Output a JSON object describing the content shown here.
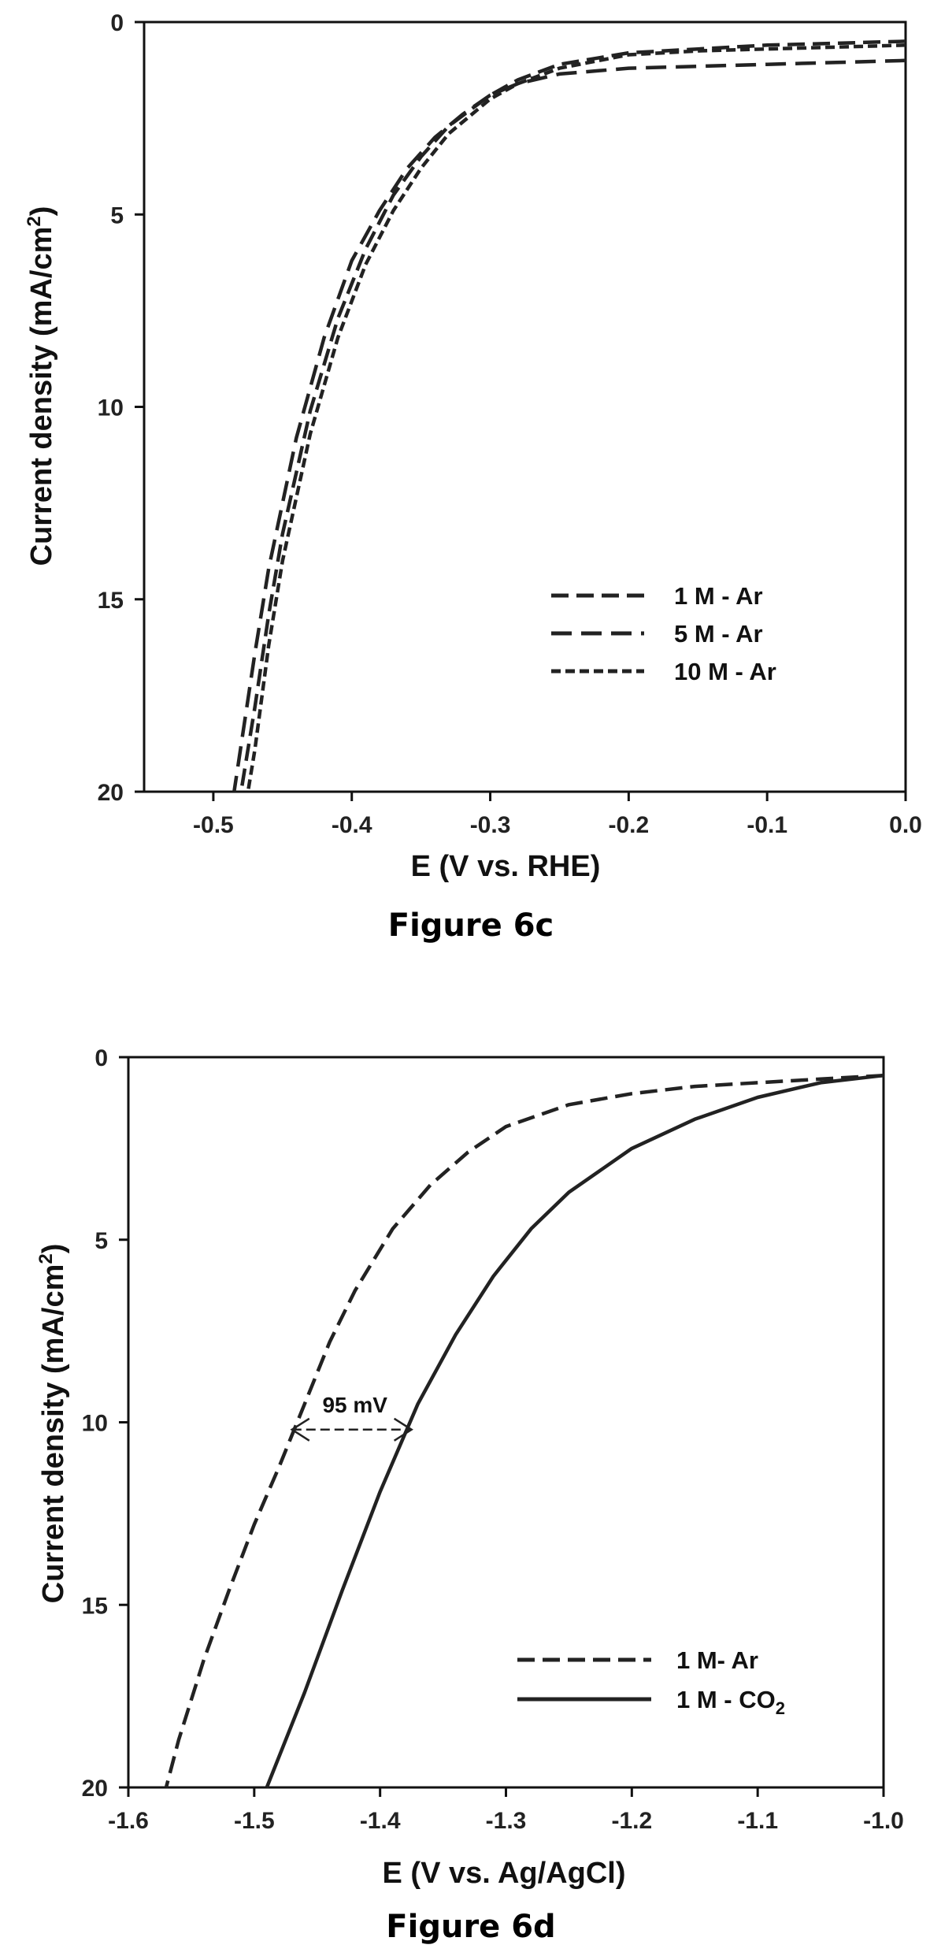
{
  "figures": [
    {
      "caption": "Figure 6c",
      "chart_data": {
        "type": "line",
        "title": "",
        "xlabel": "E (V vs. RHE)",
        "ylabel": "Current density (mA/cm",
        "ylabel_sup": "2",
        "ylabel_end": ")",
        "xlim": [
          -0.55,
          0.0
        ],
        "ylim": [
          0,
          20
        ],
        "y_inverted": true,
        "xticks": [
          -0.5,
          -0.4,
          -0.3,
          -0.2,
          -0.1,
          0.0
        ],
        "xtick_labels": [
          "-0.5",
          "-0.4",
          "-0.3",
          "-0.2",
          "-0.1",
          "0.0"
        ],
        "yticks": [
          0,
          5,
          10,
          15,
          20
        ],
        "ytick_labels": [
          "0",
          "5",
          "10",
          "15",
          "20"
        ],
        "legend_position": "bottom-right",
        "series": [
          {
            "name": "1 M - Ar",
            "dash": "22,10",
            "x": [
              0.0,
              -0.05,
              -0.1,
              -0.15,
              -0.2,
              -0.25,
              -0.28,
              -0.3,
              -0.33,
              -0.35,
              -0.37,
              -0.39,
              -0.41,
              -0.43,
              -0.45,
              -0.46,
              -0.47,
              -0.48
            ],
            "y": [
              0.5,
              0.55,
              0.6,
              0.7,
              0.8,
              1.1,
              1.5,
              1.9,
              2.7,
              3.5,
              4.5,
              5.9,
              7.7,
              10.1,
              13.3,
              15.4,
              17.8,
              20.0
            ]
          },
          {
            "name": "5 M - Ar",
            "dash": "26,12",
            "x": [
              0.0,
              -0.05,
              -0.1,
              -0.15,
              -0.2,
              -0.25,
              -0.28,
              -0.3,
              -0.32,
              -0.34,
              -0.36,
              -0.38,
              -0.4,
              -0.42,
              -0.44,
              -0.46,
              -0.47,
              -0.485
            ],
            "y": [
              1.0,
              1.05,
              1.1,
              1.15,
              1.2,
              1.35,
              1.6,
              1.9,
              2.4,
              3.0,
              3.8,
              4.9,
              6.2,
              8.2,
              10.8,
              14.2,
              16.4,
              20.0
            ]
          },
          {
            "name": "10 M - Ar",
            "dash": "12,6",
            "x": [
              0.0,
              -0.05,
              -0.1,
              -0.15,
              -0.2,
              -0.25,
              -0.28,
              -0.3,
              -0.33,
              -0.35,
              -0.37,
              -0.39,
              -0.41,
              -0.43,
              -0.45,
              -0.46,
              -0.47,
              -0.475
            ],
            "y": [
              0.6,
              0.65,
              0.7,
              0.75,
              0.85,
              1.2,
              1.6,
              2.0,
              2.9,
              3.8,
              4.9,
              6.3,
              8.2,
              10.7,
              14.0,
              16.2,
              18.9,
              20.0
            ]
          }
        ]
      }
    },
    {
      "caption": "Figure 6d",
      "chart_data": {
        "type": "line",
        "title": "",
        "xlabel": "E (V vs. Ag/AgCl)",
        "ylabel": "Current density (mA/cm",
        "ylabel_sup": "2",
        "ylabel_end": ")",
        "xlim": [
          -1.6,
          -1.0
        ],
        "ylim": [
          0,
          20
        ],
        "y_inverted": true,
        "xticks": [
          -1.6,
          -1.5,
          -1.4,
          -1.3,
          -1.2,
          -1.1,
          -1.0
        ],
        "xtick_labels": [
          "-1.6",
          "-1.5",
          "-1.4",
          "-1.3",
          "-1.2",
          "-1.1",
          "-1.0"
        ],
        "yticks": [
          0,
          5,
          10,
          15,
          20
        ],
        "ytick_labels": [
          "0",
          "5",
          "10",
          "15",
          "20"
        ],
        "legend_position": "bottom-right",
        "annotation": {
          "text": "95 mV",
          "x_from": -1.47,
          "x_to": -1.375,
          "y": 10.2
        },
        "series": [
          {
            "name": "1 M- Ar",
            "legend_sub": "",
            "dash": "22,10",
            "x": [
              -1.0,
              -1.05,
              -1.1,
              -1.15,
              -1.2,
              -1.25,
              -1.3,
              -1.33,
              -1.36,
              -1.39,
              -1.42,
              -1.44,
              -1.46,
              -1.48,
              -1.5,
              -1.52,
              -1.54,
              -1.56,
              -1.57
            ],
            "y": [
              0.5,
              0.6,
              0.7,
              0.8,
              1.0,
              1.3,
              1.9,
              2.6,
              3.5,
              4.7,
              6.4,
              7.8,
              9.5,
              11.2,
              12.8,
              14.6,
              16.5,
              18.7,
              20.0
            ]
          },
          {
            "name": "1 M - CO",
            "legend_sub": "2",
            "dash": "",
            "x": [
              -1.0,
              -1.05,
              -1.1,
              -1.15,
              -1.2,
              -1.25,
              -1.28,
              -1.31,
              -1.34,
              -1.37,
              -1.4,
              -1.43,
              -1.46,
              -1.49
            ],
            "y": [
              0.5,
              0.7,
              1.1,
              1.7,
              2.5,
              3.7,
              4.7,
              6.0,
              7.6,
              9.5,
              11.9,
              14.6,
              17.4,
              20.0
            ]
          }
        ]
      }
    }
  ]
}
